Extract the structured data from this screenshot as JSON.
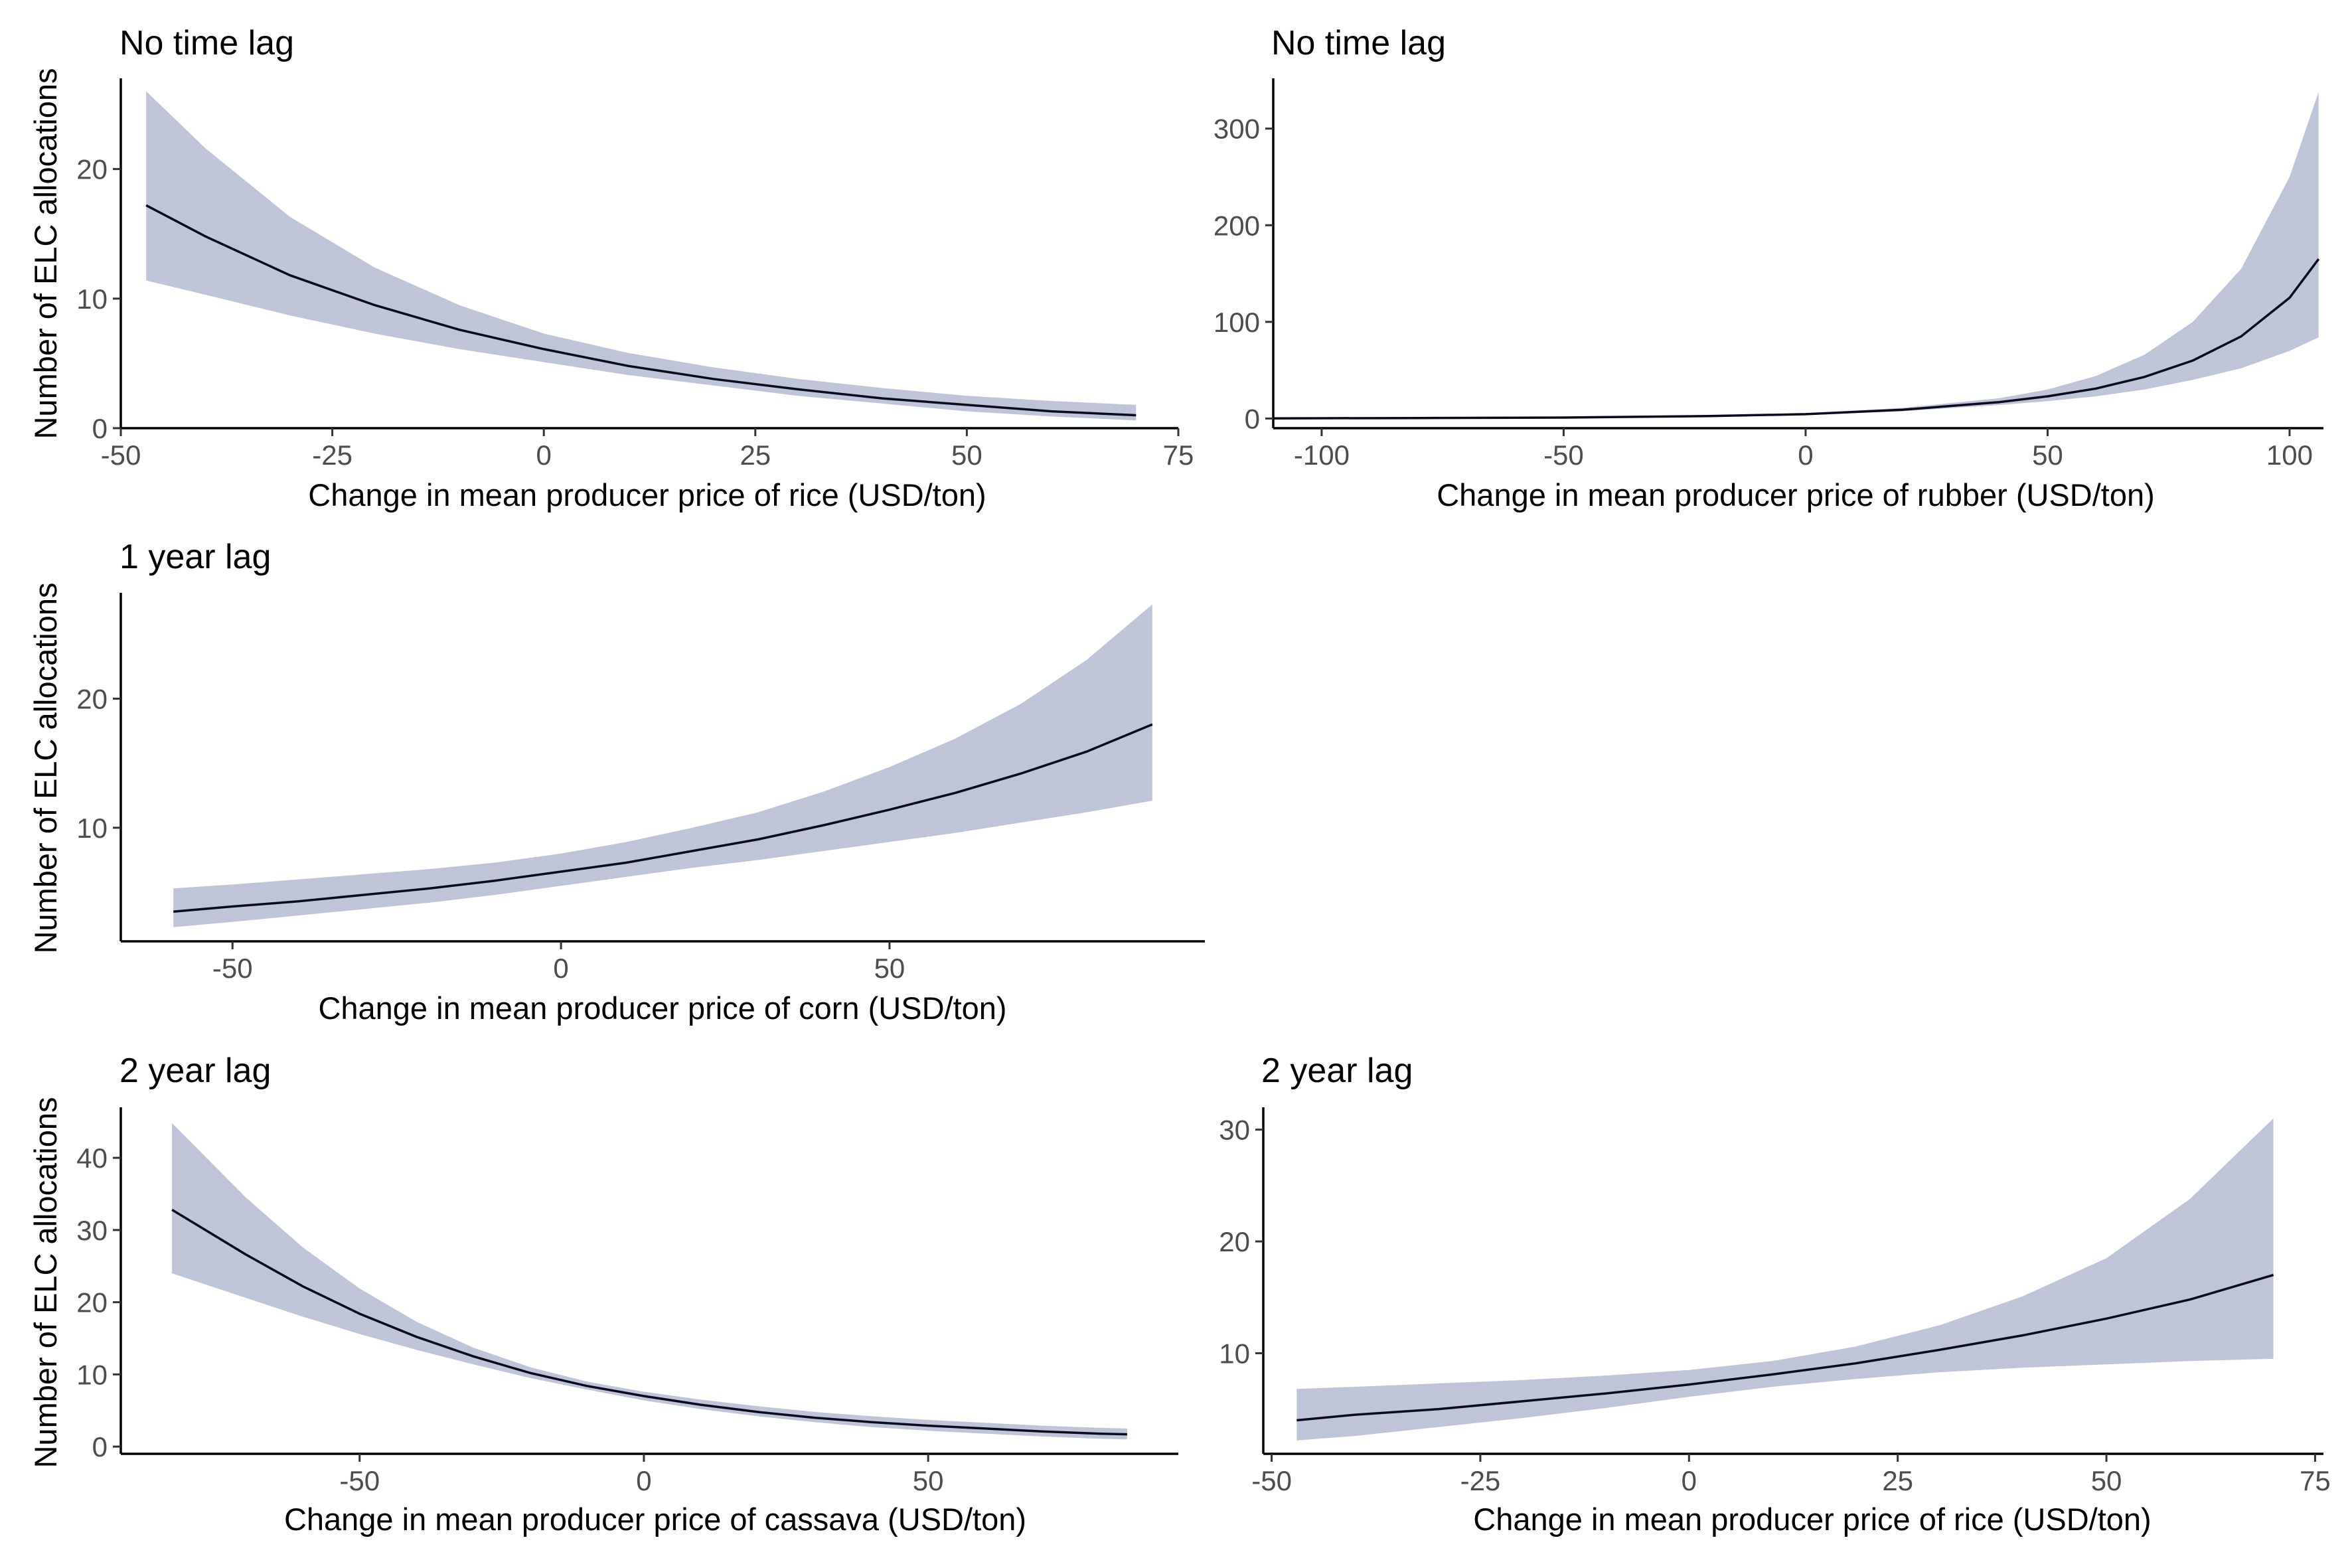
{
  "ylabel": "Number of ELC allocations",
  "colors": {
    "band": "#BFC4D9",
    "line": "#0A0A1E",
    "axis": "#000000",
    "tick_label": "#4D4D4D"
  },
  "chart_data": [
    {
      "id": "rice-no-lag",
      "type": "line",
      "title": "No time lag",
      "xlabel": "Change in mean producer price of rice (USD/ton)",
      "ylabel": "Number of ELC allocations",
      "xlim": [
        -50,
        75
      ],
      "ylim": [
        0,
        27
      ],
      "xticks": [
        -50,
        -25,
        0,
        25,
        50,
        75
      ],
      "yticks": [
        0,
        10,
        20
      ],
      "series": [
        {
          "x": [
            -47,
            -40,
            -30,
            -20,
            -10,
            0,
            10,
            20,
            30,
            40,
            50,
            60,
            70
          ],
          "y": [
            17.2,
            14.8,
            11.8,
            9.5,
            7.6,
            6.1,
            4.8,
            3.8,
            3.0,
            2.3,
            1.8,
            1.3,
            1.0
          ],
          "lower": [
            11.4,
            10.3,
            8.7,
            7.3,
            6.1,
            5.1,
            4.1,
            3.3,
            2.5,
            1.9,
            1.3,
            0.9,
            0.6
          ],
          "upper": [
            26.0,
            21.6,
            16.3,
            12.4,
            9.5,
            7.3,
            5.8,
            4.7,
            3.8,
            3.1,
            2.5,
            2.1,
            1.8
          ]
        }
      ]
    },
    {
      "id": "rubber-no-lag",
      "type": "line",
      "title": "No time lag",
      "xlabel": "Change in mean producer price of rubber (USD/ton)",
      "ylabel": "",
      "xlim": [
        -110,
        107
      ],
      "ylim": [
        -10,
        352
      ],
      "xticks": [
        -100,
        -50,
        0,
        50,
        100
      ],
      "yticks": [
        0,
        100,
        200,
        300
      ],
      "series": [
        {
          "x": [
            -110,
            -80,
            -50,
            -20,
            0,
            20,
            40,
            50,
            60,
            70,
            80,
            90,
            100,
            106
          ],
          "y": [
            0.2,
            0.5,
            1.0,
            2.5,
            4.5,
            9.0,
            17.0,
            23.0,
            31.0,
            43.0,
            60.0,
            85.0,
            125.0,
            165.0
          ],
          "lower": [
            0.0,
            0.2,
            0.5,
            1.5,
            3.5,
            7.5,
            14.0,
            18.0,
            23.0,
            30.0,
            40.0,
            52.0,
            70.0,
            84.0
          ],
          "upper": [
            0.8,
            1.2,
            2.0,
            3.5,
            5.5,
            11.0,
            21.0,
            30.0,
            44.0,
            66.0,
            100.0,
            155.0,
            250.0,
            338.0
          ]
        }
      ]
    },
    {
      "id": "corn-1yr-lag",
      "type": "line",
      "title": "1 year lag",
      "xlabel": "Change in mean producer price of corn (USD/ton)",
      "ylabel": "Number of ELC allocations",
      "xlim": [
        -67,
        98
      ],
      "ylim": [
        1.2,
        28.2
      ],
      "xticks": [
        -50,
        0,
        50
      ],
      "yticks": [
        10,
        20
      ],
      "series": [
        {
          "x": [
            -59,
            -50,
            -40,
            -30,
            -20,
            -10,
            0,
            10,
            20,
            30,
            40,
            50,
            60,
            70,
            80,
            90
          ],
          "y": [
            3.5,
            3.9,
            4.3,
            4.8,
            5.3,
            5.9,
            6.6,
            7.3,
            8.2,
            9.1,
            10.2,
            11.4,
            12.7,
            14.2,
            15.9,
            18.0
          ],
          "lower": [
            2.3,
            2.7,
            3.2,
            3.7,
            4.2,
            4.8,
            5.5,
            6.2,
            6.9,
            7.5,
            8.2,
            8.9,
            9.6,
            10.4,
            11.2,
            12.1
          ],
          "upper": [
            5.3,
            5.6,
            6.0,
            6.4,
            6.8,
            7.3,
            8.0,
            8.9,
            10.0,
            11.2,
            12.8,
            14.7,
            16.9,
            19.6,
            23.0,
            27.3
          ]
        }
      ]
    },
    {
      "id": "cassava-2yr-lag",
      "type": "line",
      "title": "2 year lag",
      "xlabel": "Change in mean producer price of cassava (USD/ton)",
      "ylabel": "Number of ELC allocations",
      "xlim": [
        -92,
        94
      ],
      "ylim": [
        -1,
        47
      ],
      "xticks": [
        -50,
        0,
        50
      ],
      "yticks": [
        0,
        10,
        20,
        30,
        40
      ],
      "series": [
        {
          "x": [
            -83,
            -70,
            -60,
            -50,
            -40,
            -30,
            -20,
            -10,
            0,
            10,
            20,
            30,
            40,
            50,
            60,
            70,
            80,
            85
          ],
          "y": [
            32.8,
            26.6,
            22.2,
            18.4,
            15.2,
            12.5,
            10.2,
            8.4,
            7.0,
            5.8,
            4.8,
            4.0,
            3.4,
            2.9,
            2.5,
            2.1,
            1.8,
            1.7
          ],
          "lower": [
            24.0,
            20.6,
            18.0,
            15.6,
            13.4,
            11.4,
            9.5,
            7.9,
            6.4,
            5.2,
            4.2,
            3.4,
            2.7,
            2.2,
            1.8,
            1.4,
            1.1,
            1.0
          ],
          "upper": [
            44.8,
            34.5,
            27.6,
            21.9,
            17.3,
            13.7,
            11.0,
            9.0,
            7.6,
            6.5,
            5.6,
            4.8,
            4.2,
            3.7,
            3.3,
            2.9,
            2.6,
            2.5
          ]
        }
      ]
    },
    {
      "id": "rice-2yr-lag",
      "type": "line",
      "title": "2 year lag",
      "xlabel": "Change in mean producer price of rice (USD/ton)",
      "ylabel": "",
      "xlim": [
        -51,
        76
      ],
      "ylim": [
        1,
        32
      ],
      "xticks": [
        -50,
        -25,
        0,
        25,
        50,
        75
      ],
      "yticks": [
        10,
        20,
        30
      ],
      "series": [
        {
          "x": [
            -47,
            -40,
            -30,
            -20,
            -10,
            0,
            10,
            20,
            30,
            40,
            50,
            60,
            70
          ],
          "y": [
            4.0,
            4.5,
            5.0,
            5.7,
            6.4,
            7.2,
            8.1,
            9.1,
            10.3,
            11.6,
            13.1,
            14.8,
            17.0
          ],
          "lower": [
            2.2,
            2.6,
            3.4,
            4.2,
            5.1,
            6.1,
            7.0,
            7.7,
            8.3,
            8.7,
            9.0,
            9.3,
            9.5
          ],
          "upper": [
            6.8,
            7.0,
            7.3,
            7.6,
            8.0,
            8.5,
            9.3,
            10.6,
            12.5,
            15.1,
            18.5,
            23.8,
            31.0
          ]
        }
      ]
    }
  ]
}
